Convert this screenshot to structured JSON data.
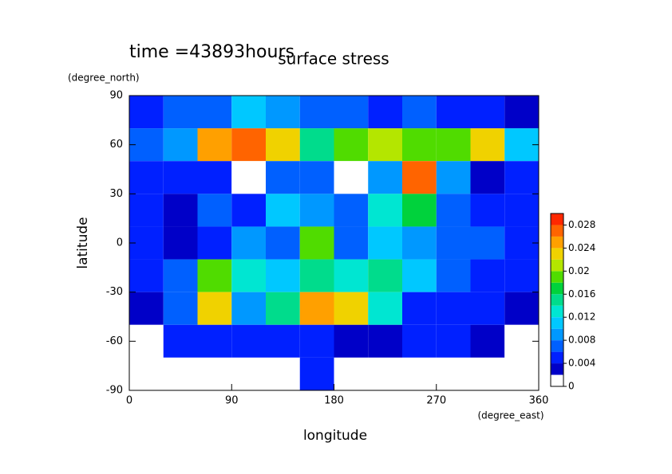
{
  "chart_data": {
    "type": "contour",
    "title": "surface stress",
    "subtitle": "time =43893hours",
    "x_label": "longitude",
    "x_units": "(degree_east)",
    "y_label": "latitude",
    "y_units": "(degree_north)",
    "x": [
      15,
      45,
      75,
      105,
      135,
      165,
      195,
      225,
      255,
      285,
      315,
      345
    ],
    "y": [
      80,
      60,
      40,
      20,
      0,
      -20,
      -40,
      -60,
      -80
    ],
    "values": [
      [
        0.004,
        0.006,
        0.006,
        0.01,
        0.008,
        0.006,
        0.006,
        0.004,
        0.006,
        0.004,
        0.004,
        0.003
      ],
      [
        0.006,
        0.008,
        0.024,
        0.026,
        0.022,
        0.014,
        0.018,
        0.02,
        0.018,
        0.018,
        0.022,
        0.01
      ],
      [
        0.004,
        0.004,
        0.004,
        0,
        0.006,
        0.006,
        0,
        0.008,
        0.026,
        0.008,
        0.002,
        0.004
      ],
      [
        0.004,
        0.002,
        0.006,
        0.004,
        0.01,
        0.008,
        0.006,
        0.012,
        0.016,
        0.006,
        0.004,
        0.004
      ],
      [
        0.004,
        0.002,
        0.004,
        0.008,
        0.006,
        0.018,
        0.006,
        0.01,
        0.008,
        0.006,
        0.006,
        0.004
      ],
      [
        0.004,
        0.006,
        0.018,
        0.012,
        0.01,
        0.014,
        0.012,
        0.014,
        0.01,
        0.006,
        0.004,
        0.004
      ],
      [
        0.002,
        0.006,
        0.022,
        0.008,
        0.014,
        0.024,
        0.022,
        0.012,
        0.004,
        0.004,
        0.004,
        0.002
      ],
      [
        0,
        0.004,
        0.004,
        0.004,
        0.004,
        0.004,
        0.002,
        0.002,
        0.004,
        0.004,
        0.002,
        0
      ],
      [
        0,
        0,
        0,
        0,
        0,
        0.004,
        0,
        0,
        0,
        0,
        0,
        0
      ]
    ],
    "xlim": [
      0,
      360
    ],
    "xticks": [
      0,
      90,
      180,
      270,
      360
    ],
    "ylim": [
      -90,
      90
    ],
    "yticks": [
      -90,
      -60,
      -30,
      0,
      30,
      60,
      90
    ],
    "clim": [
      0,
      0.03
    ],
    "cticks": [
      0,
      0.004,
      0.008,
      0.012,
      0.016,
      0.02,
      0.024,
      0.028
    ],
    "colors": [
      "#ffffff",
      "#0000c8",
      "#0020ff",
      "#0060ff",
      "#0098ff",
      "#00c8ff",
      "#00e6d2",
      "#00dc8c",
      "#00d23c",
      "#50dc00",
      "#b4e600",
      "#f0d200",
      "#ffa000",
      "#ff6400",
      "#ff2800"
    ]
  }
}
